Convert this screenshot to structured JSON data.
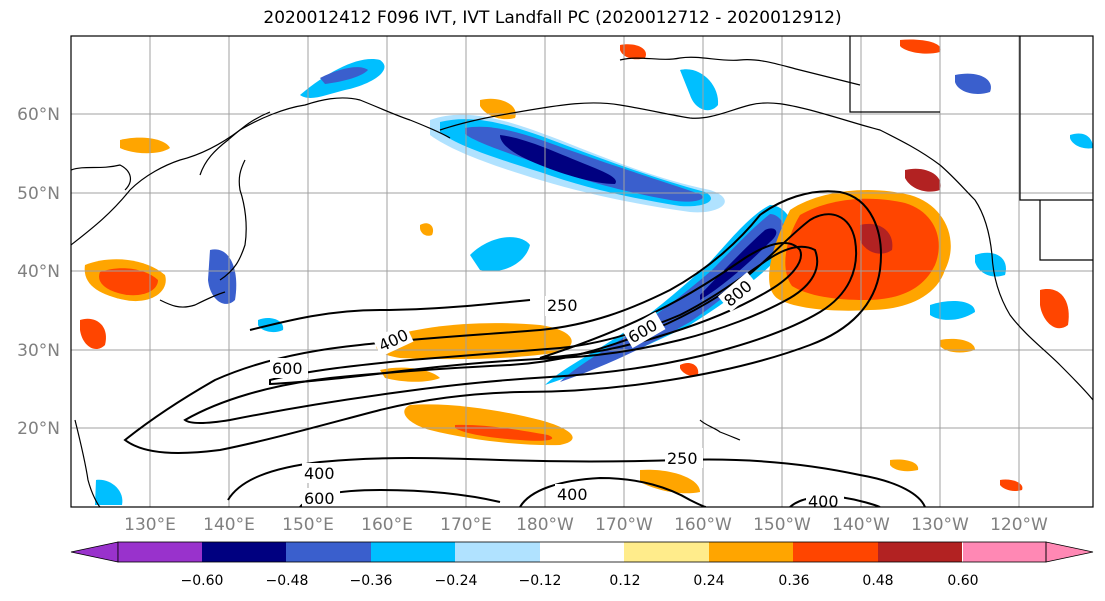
{
  "title": "2020012412 F096 IVT, IVT Landfall PC (2020012712 - 2020012912)",
  "lat_labels": [
    "60°N",
    "50°N",
    "40°N",
    "30°N",
    "20°N"
  ],
  "lon_labels": [
    "130°E",
    "140°E",
    "150°E",
    "160°E",
    "170°E",
    "180°W",
    "170°W",
    "160°W",
    "150°W",
    "140°W",
    "130°W",
    "120°W"
  ],
  "contour_labels": [
    "250",
    "400",
    "600",
    "600",
    "800",
    "250",
    "400",
    "600",
    "400",
    "400"
  ],
  "colorbar": {
    "colors": [
      "#9932cc",
      "#000080",
      "#3a5fcd",
      "#00bfff",
      "#b0e2ff",
      "#ffffff",
      "#ffec8b",
      "#ffa500",
      "#ff4500",
      "#b22222",
      "#ff88b4"
    ],
    "ticks": [
      "−0.60",
      "−0.48",
      "−0.36",
      "−0.24",
      "−0.12",
      "0.12",
      "0.24",
      "0.36",
      "0.48",
      "0.60"
    ]
  }
}
